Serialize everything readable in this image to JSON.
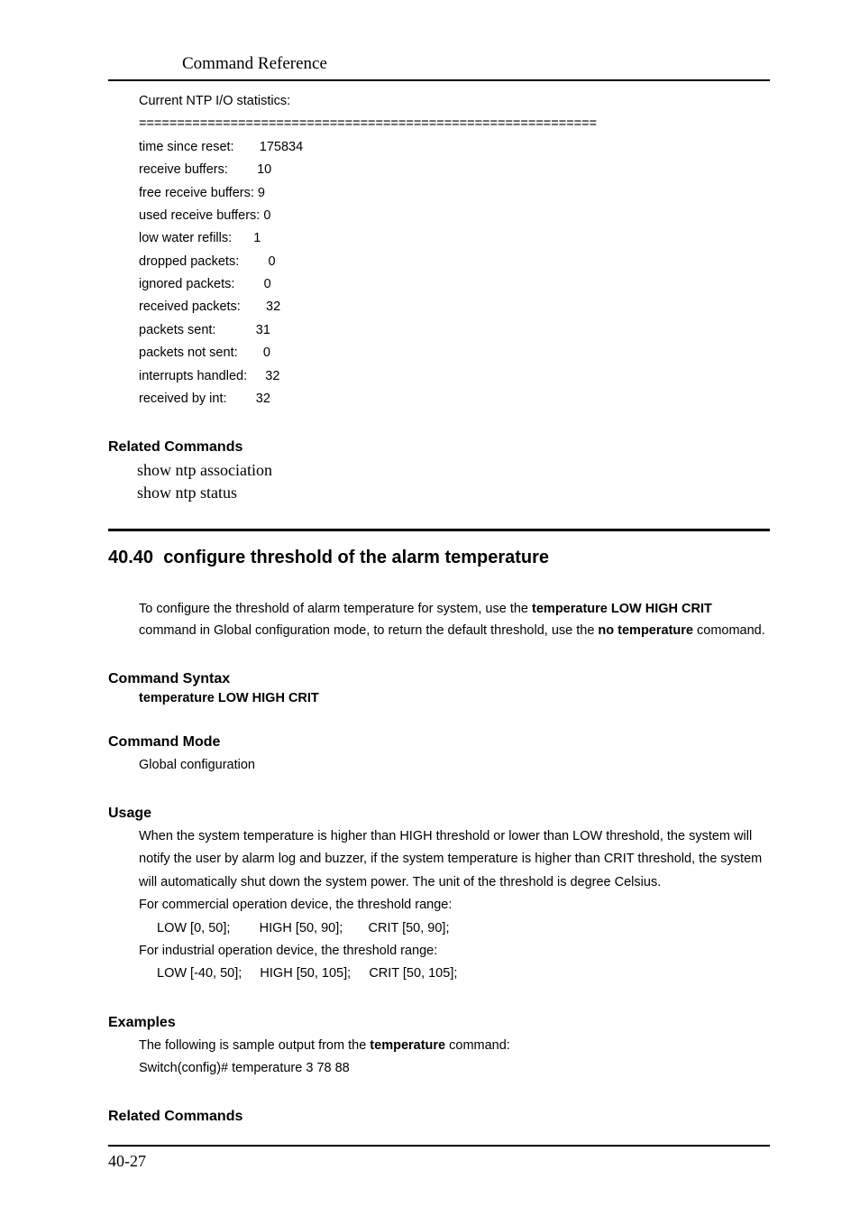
{
  "header": {
    "title": "Command Reference"
  },
  "stats": {
    "title": "Current NTP I/O statistics:",
    "sep": "============================================================",
    "lines": [
      "time since reset:       175834",
      "receive buffers:        10",
      "free receive buffers: 9",
      "used receive buffers: 0",
      "low water refills:      1",
      "dropped packets:        0",
      "ignored packets:        0",
      "received packets:       32",
      "packets sent:           31",
      "packets not sent:       0",
      "interrupts handled:     32",
      "received by int:        32"
    ]
  },
  "related1": {
    "heading": "Related Commands",
    "items": [
      "show ntp association",
      "show ntp status"
    ]
  },
  "chapter": {
    "number": "40.40",
    "title": "configure threshold of the alarm temperature"
  },
  "intro": {
    "p1a": "To configure the threshold of alarm temperature for system, use the ",
    "p1b": "temperature LOW HIGH CRIT",
    "p2a": " command in Global configuration mode, to return the default threshold, use the ",
    "p2b": "no temperature",
    "p3": " comomand."
  },
  "syntax": {
    "heading": "Command Syntax",
    "line": "temperature LOW HIGH CRIT"
  },
  "mode": {
    "heading": "Command Mode",
    "line": "Global configuration"
  },
  "usage": {
    "heading": "Usage",
    "p": "When the system temperature is higher than HIGH threshold or lower than LOW threshold, the system will notify the user by alarm log and buzzer, if the system temperature is higher than CRIT threshold, the system will automatically shut down the system power. The unit of the threshold is degree Celsius.",
    "c1": "For commercial operation device, the threshold range:",
    "c1r": "LOW [0, 50];        HIGH [50, 90];       CRIT [50, 90];",
    "c2": "For industrial operation device, the threshold range:",
    "c2r": "LOW [-40, 50];     HIGH [50, 105];     CRIT [50, 105];"
  },
  "examples": {
    "heading": "Examples",
    "l1a": "The following is sample output from the ",
    "l1b": "temperature",
    "l1c": " command:",
    "l2": "Switch(config)# temperature 3 78 88"
  },
  "related2": {
    "heading": "Related Commands"
  },
  "footer": {
    "pagenum": "40-27"
  }
}
